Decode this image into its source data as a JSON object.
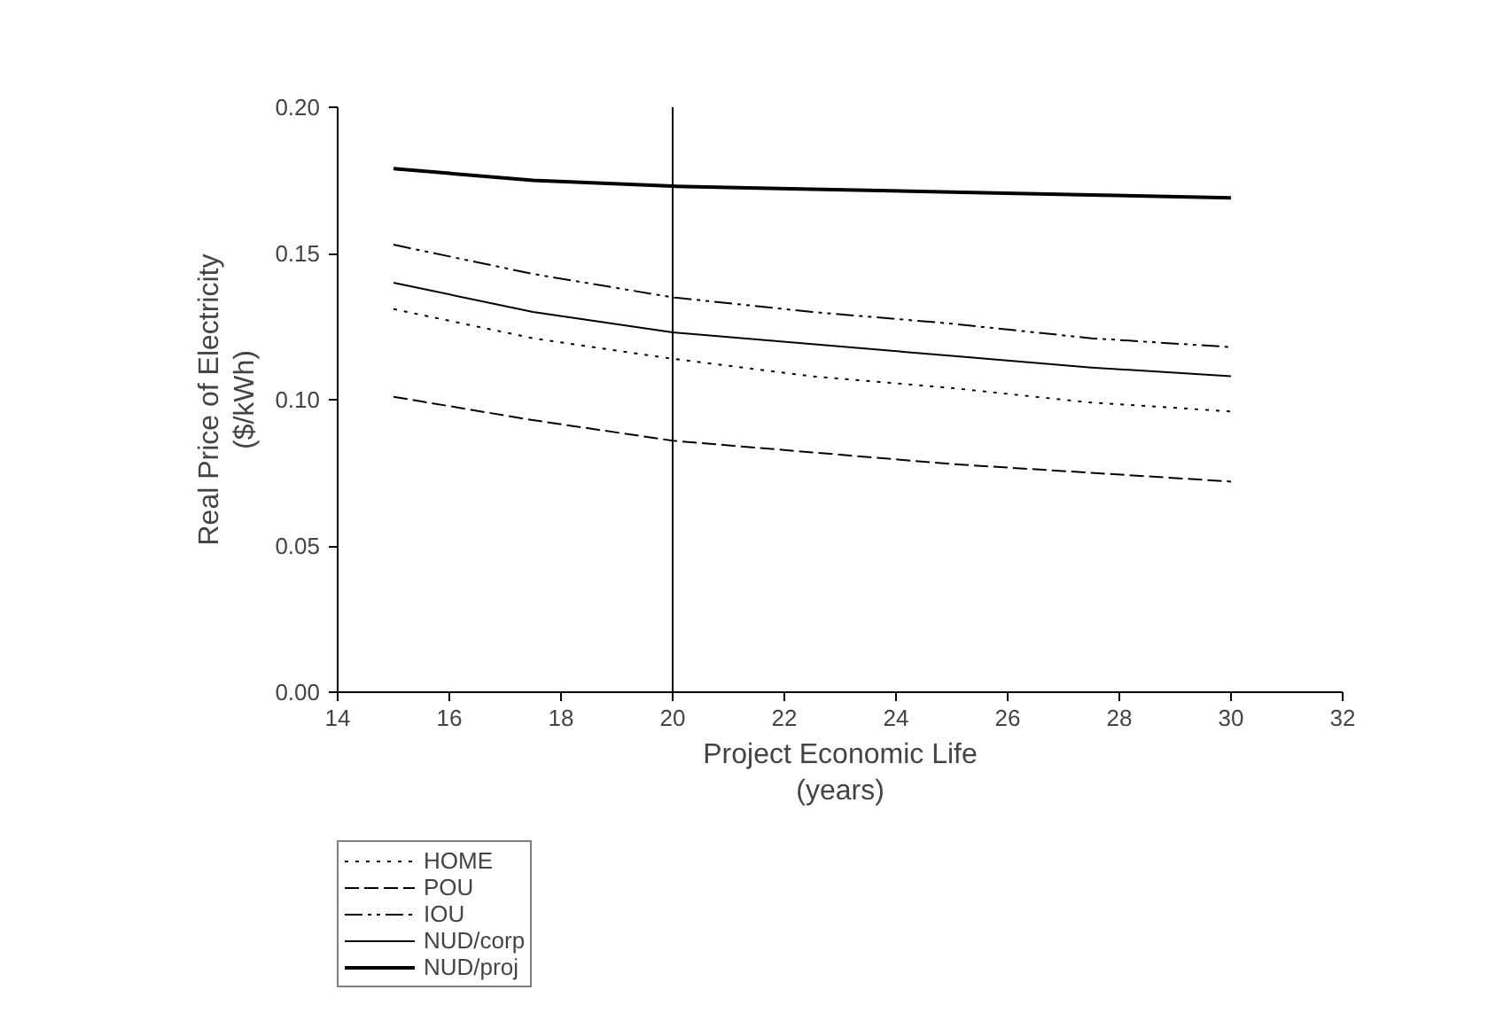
{
  "chart_data": {
    "type": "line",
    "xlabel": "Project Economic Life\n(years)",
    "ylabel": "Real Price of Electricity\n($/kWh)",
    "x": [
      15,
      17.5,
      20,
      22.5,
      25,
      27.5,
      30
    ],
    "series": [
      {
        "name": "HOME",
        "color": "#000000",
        "line_style": "dotted",
        "values": [
          0.131,
          0.121,
          0.114,
          0.108,
          0.104,
          0.099,
          0.096
        ]
      },
      {
        "name": "POU",
        "color": "#000000",
        "line_style": "dashed",
        "values": [
          0.101,
          0.093,
          0.086,
          0.082,
          0.078,
          0.075,
          0.072
        ]
      },
      {
        "name": "IOU",
        "color": "#000000",
        "line_style": "dashdotdot",
        "values": [
          0.153,
          0.143,
          0.135,
          0.13,
          0.126,
          0.121,
          0.118
        ]
      },
      {
        "name": "NUD/corp",
        "color": "#000000",
        "line_style": "solid",
        "values": [
          0.14,
          0.13,
          0.123,
          0.119,
          0.115,
          0.111,
          0.108
        ]
      },
      {
        "name": "NUD/proj",
        "color": "#000000",
        "line_style": "solid",
        "values": [
          0.179,
          0.175,
          0.173,
          0.172,
          0.171,
          0.17,
          0.169
        ]
      }
    ],
    "xlim": [
      14,
      32
    ],
    "xticks": [
      14,
      16,
      18,
      20,
      22,
      24,
      26,
      28,
      30,
      32
    ],
    "ylim": [
      0,
      0.2
    ],
    "yticks": [
      {
        "value": 0,
        "label": "0.00"
      },
      {
        "value": 0.05,
        "label": "0.05"
      },
      {
        "value": 0.1,
        "label": "0.10"
      },
      {
        "value": 0.15,
        "label": "0.15"
      },
      {
        "value": 0.2,
        "label": "0.20"
      }
    ],
    "ref_lines": [
      {
        "axis": "x",
        "value": 20,
        "color": "#000000"
      }
    ],
    "grid": false,
    "legend": "bottom left",
    "marker": "none"
  }
}
